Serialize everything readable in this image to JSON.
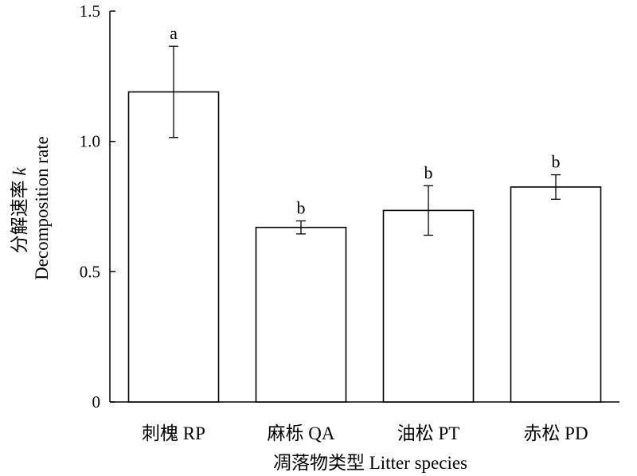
{
  "chart_data": {
    "type": "bar",
    "categories": [
      "刺槐 RP",
      "麻栎 QA",
      "油松 PT",
      "赤松 PD"
    ],
    "values": [
      1.19,
      0.67,
      0.735,
      0.825
    ],
    "errors": [
      0.175,
      0.025,
      0.095,
      0.047
    ],
    "significance": [
      "a",
      "b",
      "b",
      "b"
    ],
    "xlabel": "凋落物类型 Litter species",
    "ylabel": {
      "line1_prefix": "分解速率 ",
      "line1_symbol": "k",
      "line2": "Decomposition rate"
    },
    "ylim": [
      0,
      1.5
    ],
    "yticks": [
      0,
      0.5,
      1.0,
      1.5
    ],
    "ytick_labels": [
      "0",
      "0.5",
      "1.0",
      "1.5"
    ],
    "grid": false,
    "legend": "none",
    "bar_fill": "#ffffff",
    "bar_stroke": "#000000"
  }
}
